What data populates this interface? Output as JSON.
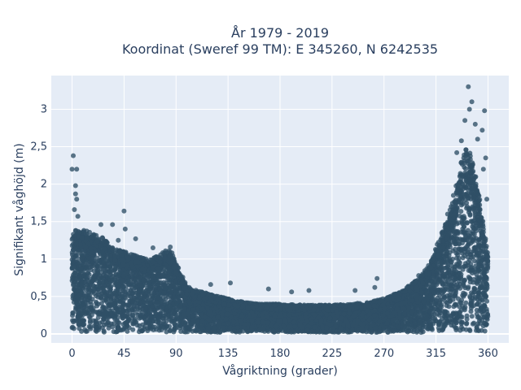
{
  "chart_data": {
    "type": "scatter",
    "title": "År 1979 - 2019",
    "subtitle": "Koordinat (Sweref 99 TM): E 345260, N 6242535",
    "xlabel": "Vågriktning (grader)",
    "ylabel": "Signifikant våghöjd (m)",
    "xlim": [
      -18,
      378
    ],
    "ylim": [
      -0.12,
      3.45
    ],
    "xticks": [
      0,
      45,
      90,
      135,
      180,
      225,
      270,
      315,
      360
    ],
    "xtick_labels": [
      "0",
      "45",
      "90",
      "135",
      "180",
      "225",
      "270",
      "315",
      "360"
    ],
    "yticks": [
      0,
      0.5,
      1,
      1.5,
      2,
      2.5,
      3
    ],
    "ytick_labels": [
      "0",
      "0,5",
      "1",
      "1,5",
      "2",
      "2,5",
      "3"
    ],
    "grid": true,
    "marker_color": "#2f5066",
    "plot_background": "#e5ecf6",
    "envelope": {
      "description_x": [
        0,
        5,
        15,
        25,
        35,
        45,
        55,
        65,
        75,
        85,
        90,
        100,
        110,
        120,
        135,
        150,
        165,
        180,
        195,
        210,
        225,
        240,
        255,
        270,
        285,
        300,
        310,
        320,
        330,
        335,
        340,
        345,
        350,
        355,
        360
      ],
      "max_y": [
        1.3,
        1.35,
        1.3,
        1.25,
        1.1,
        1.05,
        1.0,
        0.95,
        1.0,
        1.1,
        0.9,
        0.6,
        0.55,
        0.5,
        0.45,
        0.4,
        0.38,
        0.38,
        0.37,
        0.37,
        0.37,
        0.38,
        0.4,
        0.45,
        0.55,
        0.7,
        0.9,
        1.3,
        1.7,
        2.1,
        2.4,
        2.3,
        2.0,
        1.5,
        1.0
      ]
    },
    "outliers": [
      {
        "x": 1,
        "y": 2.38
      },
      {
        "x": 0,
        "y": 2.2
      },
      {
        "x": 4,
        "y": 2.2
      },
      {
        "x": 3,
        "y": 1.98
      },
      {
        "x": 3,
        "y": 1.87
      },
      {
        "x": 4,
        "y": 1.8
      },
      {
        "x": 2,
        "y": 1.66
      },
      {
        "x": 5,
        "y": 1.57
      },
      {
        "x": 45,
        "y": 1.64
      },
      {
        "x": 25,
        "y": 1.46
      },
      {
        "x": 35,
        "y": 1.46
      },
      {
        "x": 46,
        "y": 1.4
      },
      {
        "x": 40,
        "y": 1.25
      },
      {
        "x": 55,
        "y": 1.27
      },
      {
        "x": 70,
        "y": 1.15
      },
      {
        "x": 85,
        "y": 1.16
      },
      {
        "x": 120,
        "y": 0.66
      },
      {
        "x": 137,
        "y": 0.68
      },
      {
        "x": 170,
        "y": 0.6
      },
      {
        "x": 190,
        "y": 0.56
      },
      {
        "x": 205,
        "y": 0.58
      },
      {
        "x": 245,
        "y": 0.58
      },
      {
        "x": 262,
        "y": 0.62
      },
      {
        "x": 264,
        "y": 0.74
      },
      {
        "x": 300,
        "y": 0.78
      },
      {
        "x": 313,
        "y": 1.0
      },
      {
        "x": 320,
        "y": 1.35
      },
      {
        "x": 325,
        "y": 1.6
      },
      {
        "x": 330,
        "y": 1.85
      },
      {
        "x": 343,
        "y": 3.3
      },
      {
        "x": 346,
        "y": 3.1
      },
      {
        "x": 344,
        "y": 3.0
      },
      {
        "x": 357,
        "y": 2.98
      },
      {
        "x": 340,
        "y": 2.85
      },
      {
        "x": 349,
        "y": 2.8
      },
      {
        "x": 351,
        "y": 2.6
      },
      {
        "x": 355,
        "y": 2.72
      },
      {
        "x": 333,
        "y": 2.42
      },
      {
        "x": 337,
        "y": 2.58
      },
      {
        "x": 358,
        "y": 2.35
      },
      {
        "x": 356,
        "y": 2.2
      },
      {
        "x": 359,
        "y": 1.8
      }
    ]
  }
}
